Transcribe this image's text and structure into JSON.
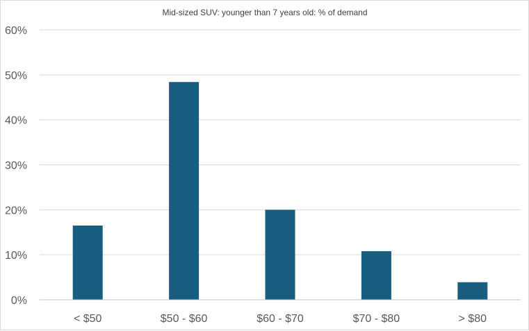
{
  "chart_data": {
    "type": "bar",
    "title": "Mid-sized SUV: younger than 7 years old: %  of demand",
    "categories": [
      "< $50",
      "$50 - $60",
      "$60 - $70",
      "$70 - $80",
      ">  $80"
    ],
    "values": [
      16.5,
      48.4,
      20.0,
      10.8,
      3.9
    ],
    "y_ticks": [
      "0%",
      "10%",
      "20%",
      "30%",
      "40%",
      "50%",
      "60%"
    ],
    "ylim": [
      0,
      60
    ],
    "grid": true,
    "legend": "none",
    "bar_color": "#175e81"
  }
}
